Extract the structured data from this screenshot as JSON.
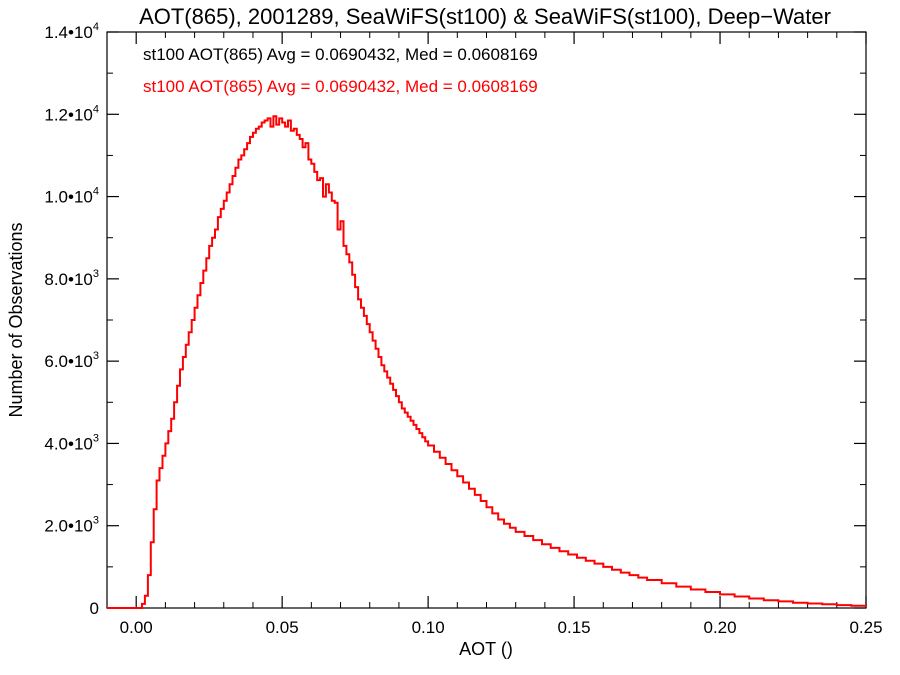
{
  "chart_data": {
    "type": "line",
    "title": "AOT(865), 2001289, SeaWiFS(st100) & SeaWiFS(st100), Deep−Water",
    "xlabel": "AOT ()",
    "ylabel": "Number of Observations",
    "xlim": [
      -0.01,
      0.25
    ],
    "ylim": [
      0,
      14000
    ],
    "x_ticks": [
      {
        "value": 0.0,
        "label": "0.00"
      },
      {
        "value": 0.05,
        "label": "0.05"
      },
      {
        "value": 0.1,
        "label": "0.10"
      },
      {
        "value": 0.15,
        "label": "0.15"
      },
      {
        "value": 0.2,
        "label": "0.20"
      },
      {
        "value": 0.25,
        "label": "0.25"
      }
    ],
    "y_ticks": [
      {
        "value": 0,
        "mant": "0",
        "exp": ""
      },
      {
        "value": 2000,
        "mant": "2.0•10",
        "exp": "3"
      },
      {
        "value": 4000,
        "mant": "4.0•10",
        "exp": "3"
      },
      {
        "value": 6000,
        "mant": "6.0•10",
        "exp": "3"
      },
      {
        "value": 8000,
        "mant": "8.0•10",
        "exp": "3"
      },
      {
        "value": 10000,
        "mant": "1.0•10",
        "exp": "4"
      },
      {
        "value": 12000,
        "mant": "1.2•10",
        "exp": "4"
      },
      {
        "value": 14000,
        "mant": "1.4•10",
        "exp": "4"
      }
    ],
    "annotations": [
      {
        "text": "st100 AOT(865) Avg = 0.0690432, Med = 0.0608169",
        "color": "#000000"
      },
      {
        "text": "st100 AOT(865) Avg = 0.0690432, Med = 0.0608169",
        "color": "#ff0000"
      }
    ],
    "series": [
      {
        "color": "#ff0000",
        "step": "post",
        "x": [
          -0.01,
          0.002,
          0.003,
          0.004,
          0.005,
          0.006,
          0.007,
          0.008,
          0.009,
          0.01,
          0.011,
          0.012,
          0.013,
          0.014,
          0.015,
          0.016,
          0.017,
          0.018,
          0.019,
          0.02,
          0.021,
          0.022,
          0.023,
          0.024,
          0.025,
          0.026,
          0.027,
          0.028,
          0.029,
          0.03,
          0.031,
          0.032,
          0.033,
          0.034,
          0.035,
          0.036,
          0.037,
          0.038,
          0.039,
          0.04,
          0.041,
          0.042,
          0.043,
          0.044,
          0.045,
          0.046,
          0.047,
          0.048,
          0.049,
          0.05,
          0.051,
          0.052,
          0.053,
          0.054,
          0.055,
          0.056,
          0.057,
          0.058,
          0.059,
          0.06,
          0.061,
          0.062,
          0.063,
          0.064,
          0.065,
          0.066,
          0.067,
          0.068,
          0.069,
          0.07,
          0.071,
          0.072,
          0.073,
          0.074,
          0.075,
          0.076,
          0.077,
          0.078,
          0.079,
          0.08,
          0.081,
          0.082,
          0.083,
          0.084,
          0.085,
          0.086,
          0.087,
          0.088,
          0.089,
          0.09,
          0.091,
          0.092,
          0.093,
          0.094,
          0.095,
          0.096,
          0.097,
          0.098,
          0.099,
          0.1,
          0.102,
          0.104,
          0.106,
          0.108,
          0.11,
          0.112,
          0.114,
          0.116,
          0.118,
          0.12,
          0.122,
          0.124,
          0.126,
          0.128,
          0.13,
          0.133,
          0.136,
          0.139,
          0.142,
          0.145,
          0.148,
          0.151,
          0.154,
          0.157,
          0.16,
          0.163,
          0.166,
          0.169,
          0.172,
          0.175,
          0.18,
          0.185,
          0.19,
          0.195,
          0.2,
          0.205,
          0.21,
          0.215,
          0.22,
          0.225,
          0.23,
          0.235,
          0.24,
          0.245,
          0.25
        ],
        "y": [
          0,
          100,
          300,
          800,
          1600,
          2400,
          3100,
          3400,
          3700,
          4000,
          4300,
          4600,
          5000,
          5400,
          5800,
          6100,
          6400,
          6700,
          7000,
          7300,
          7600,
          7900,
          8200,
          8500,
          8800,
          9000,
          9200,
          9500,
          9700,
          9900,
          10100,
          10300,
          10500,
          10700,
          10900,
          11000,
          11150,
          11300,
          11450,
          11550,
          11650,
          11700,
          11800,
          11850,
          11900,
          11700,
          11950,
          11750,
          11900,
          11800,
          11700,
          11850,
          11600,
          11650,
          11500,
          11400,
          11200,
          11300,
          10900,
          10800,
          10600,
          10400,
          10450,
          10000,
          10300,
          10100,
          9900,
          9850,
          9200,
          9400,
          8800,
          8600,
          8400,
          8100,
          7800,
          7500,
          7300,
          7100,
          6900,
          6700,
          6500,
          6300,
          6100,
          5900,
          5750,
          5600,
          5450,
          5300,
          5150,
          5000,
          4850,
          4750,
          4650,
          4550,
          4450,
          4350,
          4250,
          4150,
          4050,
          3950,
          3800,
          3650,
          3500,
          3350,
          3200,
          3050,
          2900,
          2750,
          2600,
          2450,
          2300,
          2150,
          2050,
          1950,
          1850,
          1750,
          1650,
          1550,
          1460,
          1380,
          1300,
          1220,
          1150,
          1080,
          1000,
          930,
          860,
          800,
          740,
          680,
          600,
          520,
          450,
          390,
          330,
          280,
          230,
          190,
          160,
          130,
          110,
          90,
          70,
          55,
          40
        ]
      }
    ]
  }
}
